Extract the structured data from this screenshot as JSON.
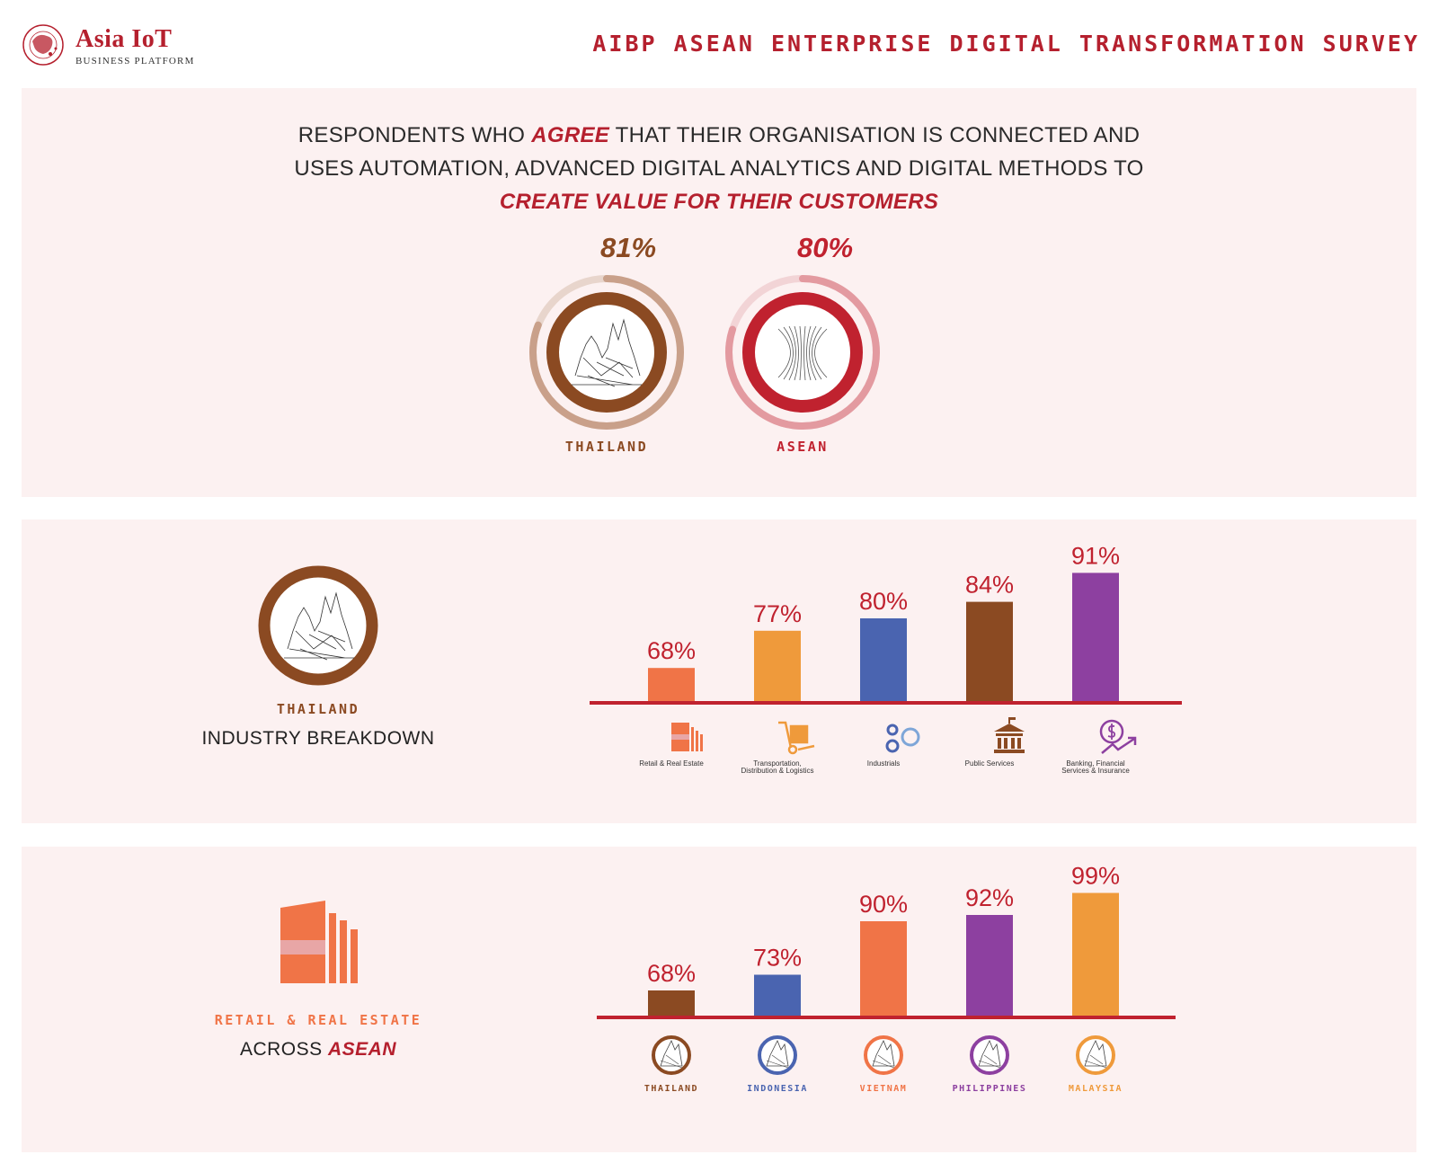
{
  "header": {
    "logo_title": "Asia IoT",
    "logo_subtitle": "BUSINESS PLATFORM",
    "survey_title": "AIBP ASEAN ENTERPRISE DIGITAL TRANSFORMATION SURVEY"
  },
  "headline": {
    "line1_pre": "RESPONDENTS WHO ",
    "line1_em": "AGREE",
    "line1_post": " THAT THEIR ORGANISATION IS CONNECTED AND",
    "line2": "USES AUTOMATION, ADVANCED DIGITAL ANALYTICS AND DIGITAL METHODS TO",
    "line3_em": "CREATE VALUE FOR THEIR CUSTOMERS"
  },
  "colors": {
    "accent_red": "#c0222f",
    "brown": "#8b4a22",
    "orange_red": "#f07447",
    "amber": "#ef9a3b",
    "blue": "#4a64b0",
    "purple": "#8d40a0"
  },
  "chart_data": [
    {
      "type": "pie",
      "name": "summary-rings",
      "categories": [
        "THAILAND",
        "ASEAN"
      ],
      "values": [
        81,
        80
      ],
      "value_labels": [
        "81%",
        "80%"
      ],
      "colors": [
        "#8b4a22",
        "#c0222f"
      ]
    },
    {
      "type": "bar",
      "name": "thailand-industry-breakdown",
      "title": "THAILAND",
      "subtitle": "INDUSTRY BREAKDOWN",
      "categories": [
        "Retail & Real Estate",
        "Transportation, Distribution & Logistics",
        "Industrials",
        "Public Services",
        "Banking, Financial Services & Insurance"
      ],
      "category_lines": [
        [
          "Retail & Real Estate"
        ],
        [
          "Transportation,",
          "Distribution & Logistics"
        ],
        [
          "Industrials"
        ],
        [
          "Public Services"
        ],
        [
          "Banking, Financial",
          "Services & Insurance"
        ]
      ],
      "category_icons": [
        "building-icon",
        "hand-truck-icon",
        "gears-icon",
        "government-building-icon",
        "finance-growth-icon"
      ],
      "values": [
        68,
        77,
        80,
        84,
        91
      ],
      "value_labels": [
        "68%",
        "77%",
        "80%",
        "84%",
        "91%"
      ],
      "colors": [
        "#f07447",
        "#ef9a3b",
        "#4a64b0",
        "#8b4a22",
        "#8d40a0"
      ]
    },
    {
      "type": "bar",
      "name": "retail-real-estate-across-asean",
      "title": "RETAIL & REAL ESTATE",
      "subtitle_pre": "ACROSS ",
      "subtitle_em": "ASEAN",
      "categories": [
        "THAILAND",
        "INDONESIA",
        "VIETNAM",
        "PHILIPPINES",
        "MALAYSIA"
      ],
      "values": [
        68,
        73,
        90,
        92,
        99
      ],
      "value_labels": [
        "68%",
        "73%",
        "90%",
        "92%",
        "99%"
      ],
      "colors": [
        "#8b4a22",
        "#4a64b0",
        "#f07447",
        "#8d40a0",
        "#ef9a3b"
      ]
    }
  ]
}
